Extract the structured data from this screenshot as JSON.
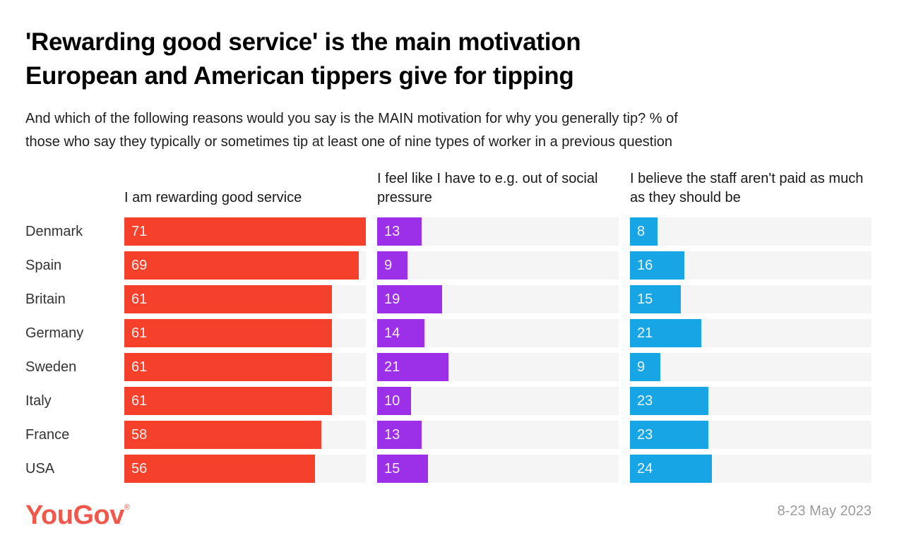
{
  "header": {
    "title_lines": [
      "'Rewarding good service' is the main motivation",
      "European and American tippers give for tipping"
    ],
    "subtitle_lines": [
      "And which of the following reasons would you say is the MAIN motivation for why you generally tip? % of",
      "those who say they typically or sometimes tip at least one of nine types of worker in a previous question"
    ]
  },
  "chart_data": {
    "type": "bar",
    "orientation": "horizontal",
    "unit": "%",
    "categories": [
      "Denmark",
      "Spain",
      "Britain",
      "Germany",
      "Sweden",
      "Italy",
      "France",
      "USA"
    ],
    "series": [
      {
        "name": "I am rewarding good service",
        "color": "#f5402c",
        "values": [
          71,
          69,
          61,
          61,
          61,
          61,
          58,
          56
        ]
      },
      {
        "name": "I feel like I have to e.g. out of social pressure",
        "color": "#9c30e8",
        "values": [
          13,
          9,
          19,
          14,
          21,
          10,
          13,
          15
        ]
      },
      {
        "name": "I believe the staff aren't paid as much as they should be",
        "color": "#17a5e5",
        "values": [
          8,
          16,
          15,
          21,
          9,
          23,
          23,
          24
        ]
      }
    ],
    "scale_max": 71,
    "track_color": "#f5f5f5",
    "value_labels": "inside-left",
    "grid": false,
    "legend": "column-headers"
  },
  "footer": {
    "logo_text": "YouGov",
    "logo_mark": "®",
    "logo_color": "#f1574a",
    "date_range": "8-23 May 2023"
  }
}
